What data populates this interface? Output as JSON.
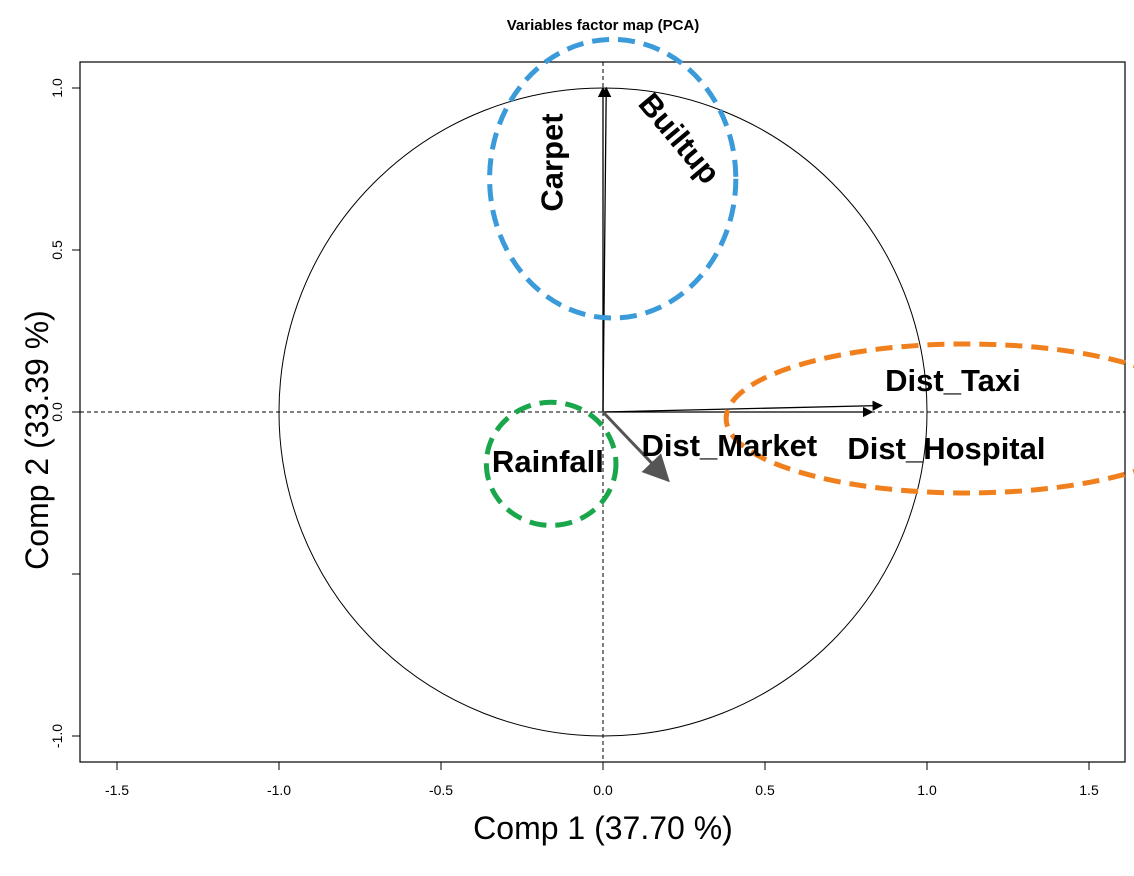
{
  "chart_data": {
    "type": "scatter",
    "title": "Variables factor map (PCA)",
    "xlabel": "Comp 1 (37.70 %)",
    "ylabel": "Comp 2 (33.39 %)",
    "xlim": [
      -1.6,
      1.6
    ],
    "ylim": [
      -1.08,
      1.08
    ],
    "x_ticks": [
      -1.5,
      -1.0,
      -0.5,
      0.0,
      0.5,
      1.0,
      1.5
    ],
    "x_tick_labels": [
      "-1.5",
      "-1.0",
      "-0.5",
      "0.0",
      "0.5",
      "1.0",
      "1.5"
    ],
    "y_ticks": [
      -1.0,
      -0.5,
      0.0,
      0.5,
      1.0
    ],
    "y_tick_labels": [
      "-1.0",
      "",
      "0.0",
      "0.5",
      "1.0"
    ],
    "grid": false,
    "unit_circle": true,
    "reference_lines": {
      "x": 0,
      "y": 0,
      "style": "dashed"
    },
    "series": [
      {
        "name": "Carpet",
        "x": 0.0,
        "y": 1.0,
        "color": "#000000"
      },
      {
        "name": "Builtup",
        "x": 0.01,
        "y": 1.0,
        "color": "#000000"
      },
      {
        "name": "Dist_Taxi",
        "x": 0.86,
        "y": 0.02,
        "color": "#000000"
      },
      {
        "name": "Dist_Hospital",
        "x": 0.83,
        "y": 0.0,
        "color": "#000000"
      },
      {
        "name": "Dist_Market",
        "x": 0.2,
        "y": -0.21,
        "color": "#555555"
      },
      {
        "name": "Rainfall",
        "x": 0.0,
        "y": 0.0,
        "color": "#000000"
      }
    ],
    "annotations": [
      {
        "label": "Carpet",
        "x": -0.15,
        "y": 0.77,
        "rotation": -90,
        "color": "#000000"
      },
      {
        "label": "Builtup",
        "x": 0.23,
        "y": 0.84,
        "rotation": 50,
        "color": "#000000"
      },
      {
        "label": "Dist_Taxi",
        "x": 1.08,
        "y": 0.09,
        "rotation": 0,
        "color": "#000000"
      },
      {
        "label": "Dist_Market",
        "x": 0.39,
        "y": -0.11,
        "rotation": 0,
        "color": "#000000"
      },
      {
        "label": "Dist_Hospital",
        "x": 1.06,
        "y": -0.12,
        "rotation": 0,
        "color": "#000000"
      },
      {
        "label": "Rainfall",
        "x": -0.17,
        "y": -0.16,
        "rotation": 0,
        "color": "#000000"
      }
    ],
    "highlight_groups": [
      {
        "members": [
          "Carpet",
          "Builtup"
        ],
        "center": [
          0.03,
          0.72
        ],
        "radii": [
          0.38,
          0.43
        ],
        "color": "#3b9ad9"
      },
      {
        "members": [
          "Dist_Taxi",
          "Dist_Market",
          "Dist_Hospital"
        ],
        "center": [
          1.12,
          -0.02
        ],
        "radii": [
          0.74,
          0.23
        ],
        "color": "#f07f1e"
      },
      {
        "members": [
          "Rainfall"
        ],
        "center": [
          -0.16,
          -0.16
        ],
        "radii": [
          0.2,
          0.19
        ],
        "color": "#1aa64b"
      }
    ]
  }
}
